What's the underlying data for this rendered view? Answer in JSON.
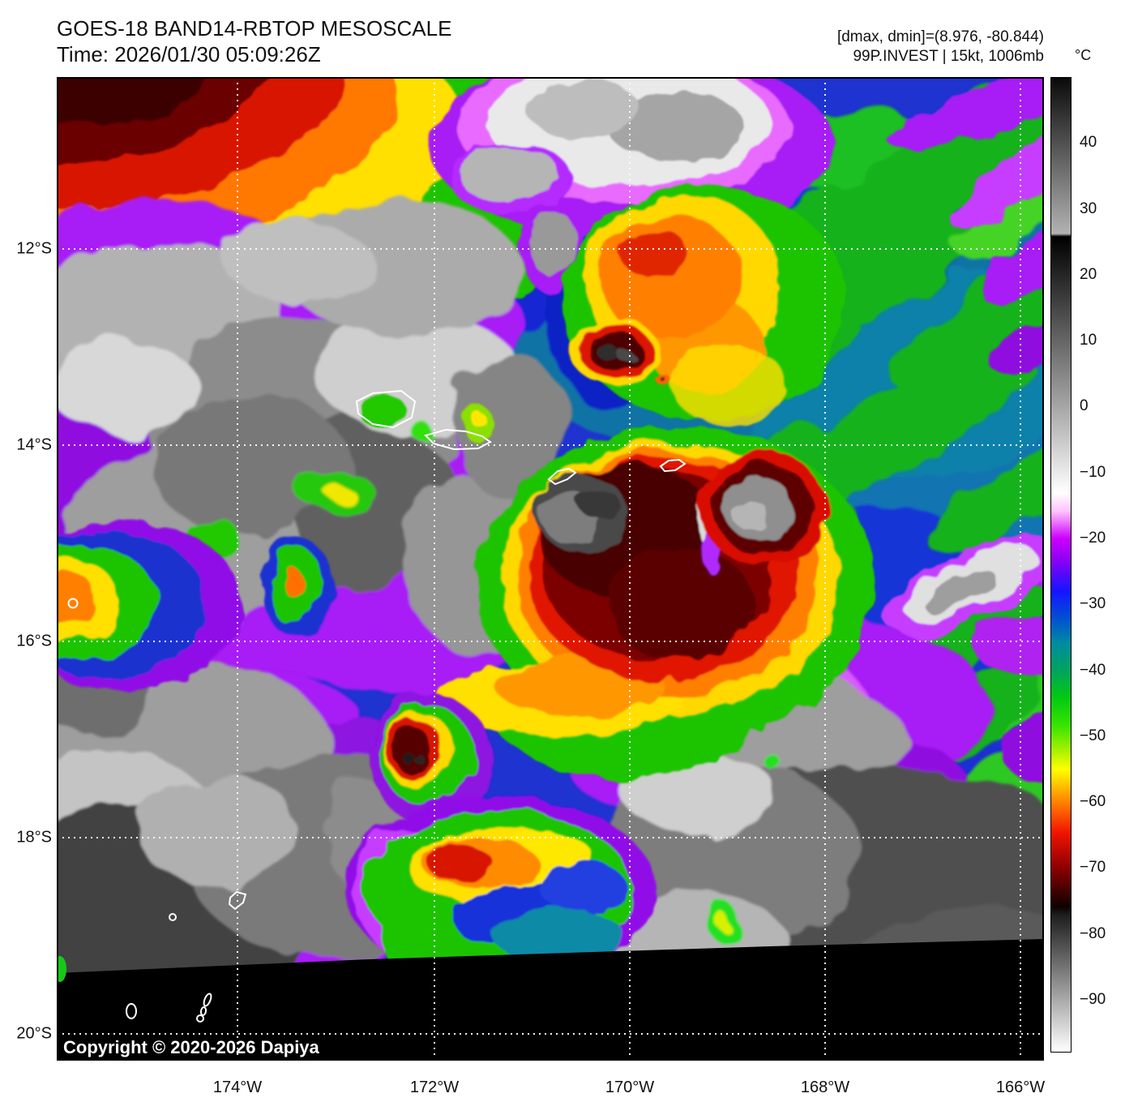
{
  "header": {
    "title": "GOES-18 BAND14-RBTOP MESOSCALE",
    "time_line": "Time: 2026/01/30 05:09:26Z"
  },
  "annotations": {
    "dmax_dmin": "[dmax, dmin]=(8.976, -80.844)",
    "storm_info": "99P.INVEST | 15kt, 1006mb"
  },
  "colorbar": {
    "unit": "°C",
    "ticks": [
      "40",
      "30",
      "20",
      "10",
      "0",
      "−10",
      "−20",
      "−30",
      "−40",
      "−50",
      "−60",
      "−70",
      "−80",
      "−90"
    ],
    "tick_values": [
      40,
      30,
      20,
      10,
      0,
      -10,
      -20,
      -30,
      -40,
      -50,
      -60,
      -70,
      -80,
      -90
    ],
    "gradient_stops": [
      [
        0,
        "#0a0a0a"
      ],
      [
        16.0,
        "#b2b2b2"
      ],
      [
        16.3,
        "#000000"
      ],
      [
        33.8,
        "#a6a6a6"
      ],
      [
        42.6,
        "#ffffff"
      ],
      [
        44.5,
        "#ffc3ff"
      ],
      [
        47.3,
        "#cc00ff"
      ],
      [
        49.5,
        "#8c00f5"
      ],
      [
        52.7,
        "#1414ff"
      ],
      [
        55.5,
        "#0050d2"
      ],
      [
        58.1,
        "#008ca0"
      ],
      [
        61.0,
        "#00a55a"
      ],
      [
        63.5,
        "#00c814"
      ],
      [
        66.5,
        "#38e400"
      ],
      [
        68.9,
        "#a0f000"
      ],
      [
        71.0,
        "#ffff00"
      ],
      [
        73.0,
        "#ffb400"
      ],
      [
        75.2,
        "#ff6400"
      ],
      [
        77.5,
        "#f01400"
      ],
      [
        81.1,
        "#8c0000"
      ],
      [
        85.1,
        "#0f0000"
      ],
      [
        86.0,
        "#1e1e1e"
      ],
      [
        100,
        "#ffffff"
      ]
    ]
  },
  "axes": {
    "lat_labels": [
      "12°S",
      "14°S",
      "16°S",
      "18°S",
      "20°S"
    ],
    "lon_labels": [
      "174°W",
      "172°W",
      "170°W",
      "168°W",
      "166°W"
    ]
  },
  "map": {
    "copyright": "Copyright © 2020-2026 Dapiya"
  },
  "palette_legend": {
    "warm_clear": "#1e33cf",
    "mid_cloud_gray": "#9e9e9e",
    "cold_ring_purple": "#a81ef5",
    "colder_green": "#1fc400",
    "very_cold_yellow": "#ffd800",
    "extreme_red": "#e01400",
    "extreme_dark_red": "#7c0200",
    "overshoot_gray": "#4a4a4a",
    "no_data_black": "#000000"
  }
}
